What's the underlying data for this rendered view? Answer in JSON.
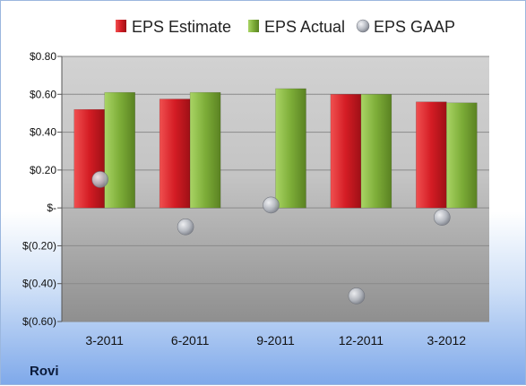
{
  "company": "Rovi",
  "colors": {
    "estimate": "#d0202a",
    "actual": "#7fad3a",
    "gaap": "#b8bcc4"
  },
  "chart_data": {
    "type": "bar",
    "categories": [
      "3-2011",
      "6-2011",
      "9-2011",
      "12-2011",
      "3-2012"
    ],
    "series": [
      {
        "name": "EPS Estimate",
        "type": "bar",
        "values": [
          0.52,
          0.575,
          null,
          0.6,
          0.56
        ]
      },
      {
        "name": "EPS Actual",
        "type": "bar",
        "values": [
          0.61,
          0.61,
          0.63,
          0.6,
          0.555
        ]
      },
      {
        "name": "EPS GAAP",
        "type": "scatter",
        "values": [
          0.15,
          -0.1,
          0.015,
          -0.465,
          -0.05
        ]
      }
    ],
    "ylim": [
      -0.6,
      0.8
    ],
    "yticks": [
      0.8,
      0.6,
      0.4,
      0.2,
      0,
      -0.2,
      -0.4,
      -0.6
    ],
    "ytick_labels": [
      "$0.80",
      "$0.60",
      "$0.40",
      "$0.20",
      "$-",
      "$(0.20)",
      "$(0.40)",
      "$(0.60)"
    ],
    "grid": true,
    "legend": "top"
  }
}
